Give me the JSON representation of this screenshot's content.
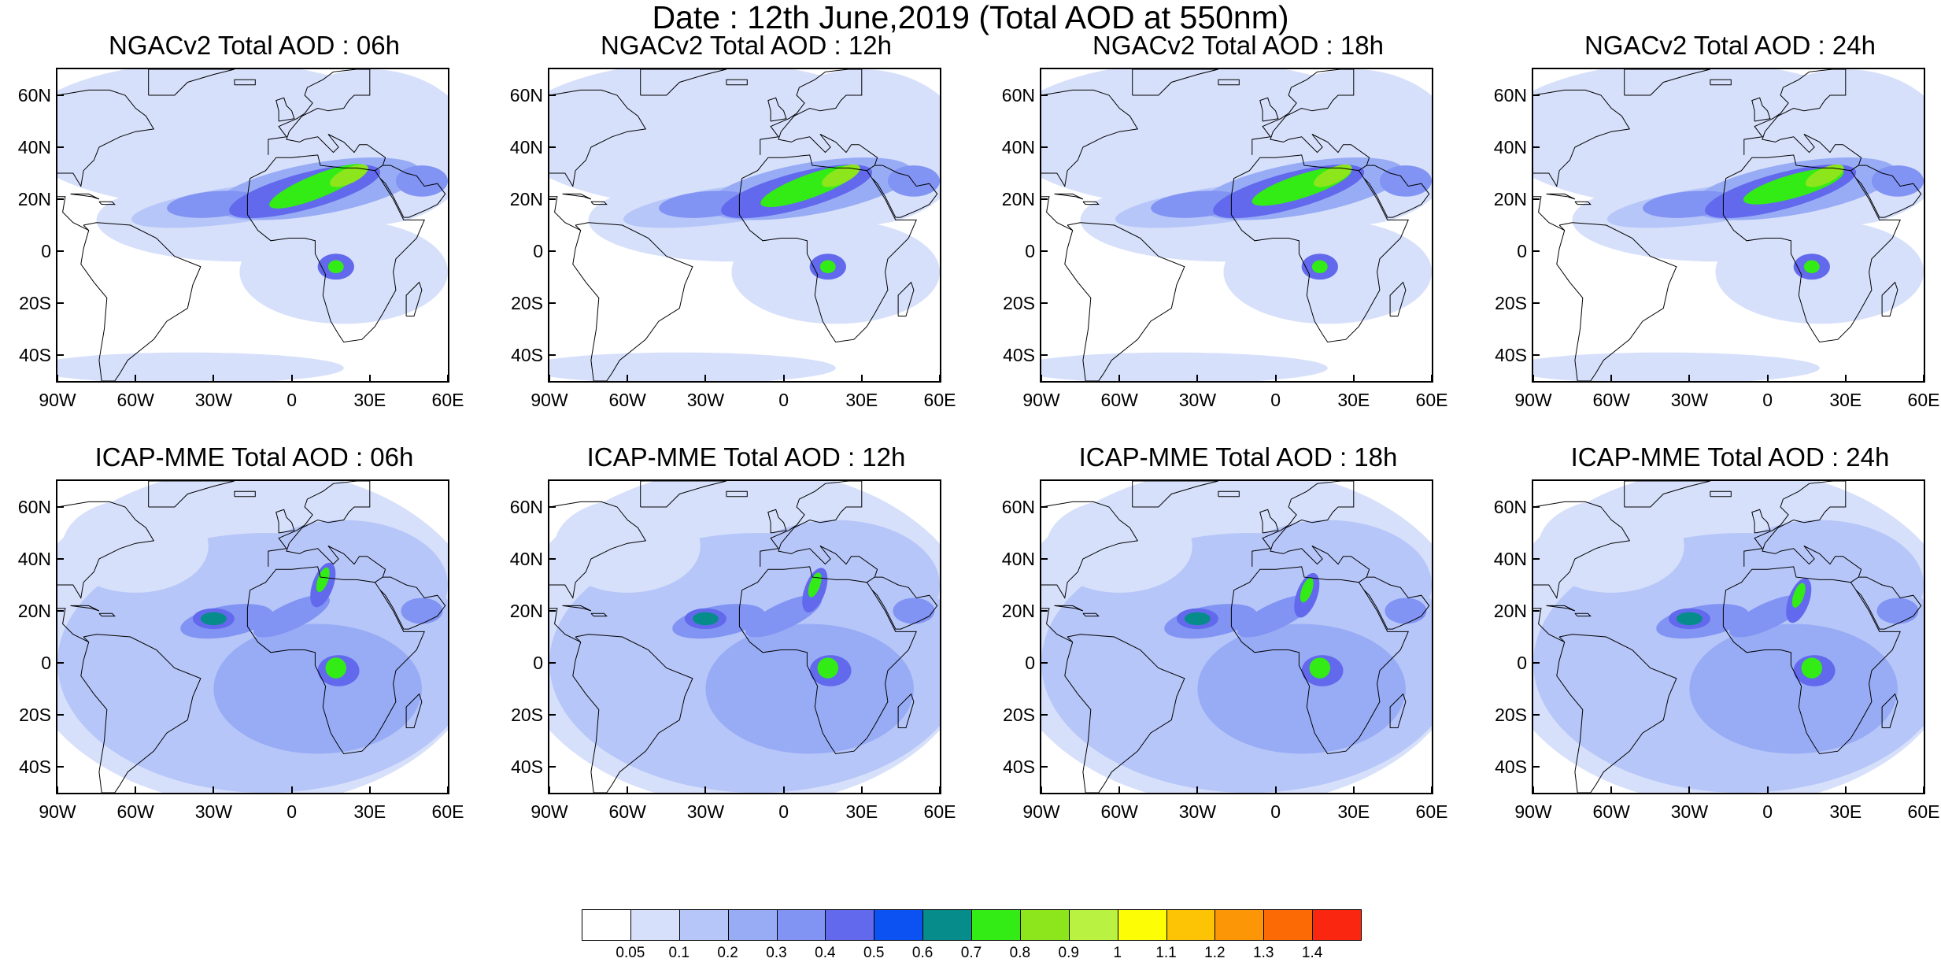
{
  "title": "Date : 12th June,2019 (Total AOD at 550nm)",
  "panels": [
    {
      "title": "NGACv2 Total AOD : 06h",
      "model": "NGACv2",
      "hour": "06h"
    },
    {
      "title": "NGACv2 Total AOD : 12h",
      "model": "NGACv2",
      "hour": "12h"
    },
    {
      "title": "NGACv2 Total AOD : 18h",
      "model": "NGACv2",
      "hour": "18h"
    },
    {
      "title": "NGACv2 Total AOD : 24h",
      "model": "NGACv2",
      "hour": "24h"
    },
    {
      "title": "ICAP-MME Total AOD : 06h",
      "model": "ICAP-MME",
      "hour": "06h"
    },
    {
      "title": "ICAP-MME Total AOD : 12h",
      "model": "ICAP-MME",
      "hour": "12h"
    },
    {
      "title": "ICAP-MME Total AOD : 18h",
      "model": "ICAP-MME",
      "hour": "18h"
    },
    {
      "title": "ICAP-MME Total AOD : 24h",
      "model": "ICAP-MME",
      "hour": "24h"
    }
  ],
  "lat_labels": [
    "60N",
    "40N",
    "20N",
    "0",
    "20S",
    "40S"
  ],
  "lon_labels": [
    "90W",
    "60W",
    "30W",
    "0",
    "30E",
    "60E"
  ],
  "colorbar": {
    "labels": [
      "0.05",
      "0.1",
      "0.2",
      "0.3",
      "0.4",
      "0.5",
      "0.6",
      "0.7",
      "0.8",
      "0.9",
      "1",
      "1.1",
      "1.2",
      "1.3",
      "1.4"
    ],
    "colors": [
      "#ffffff",
      "#d7e0fb",
      "#b7c6f8",
      "#98acf6",
      "#8193f3",
      "#6269ec",
      "#0c52f3",
      "#078c8c",
      "#33ec15",
      "#8ce61b",
      "#b9f241",
      "#fdfd06",
      "#fdc405",
      "#fd9606",
      "#fb6a05",
      "#fb2610"
    ]
  }
}
